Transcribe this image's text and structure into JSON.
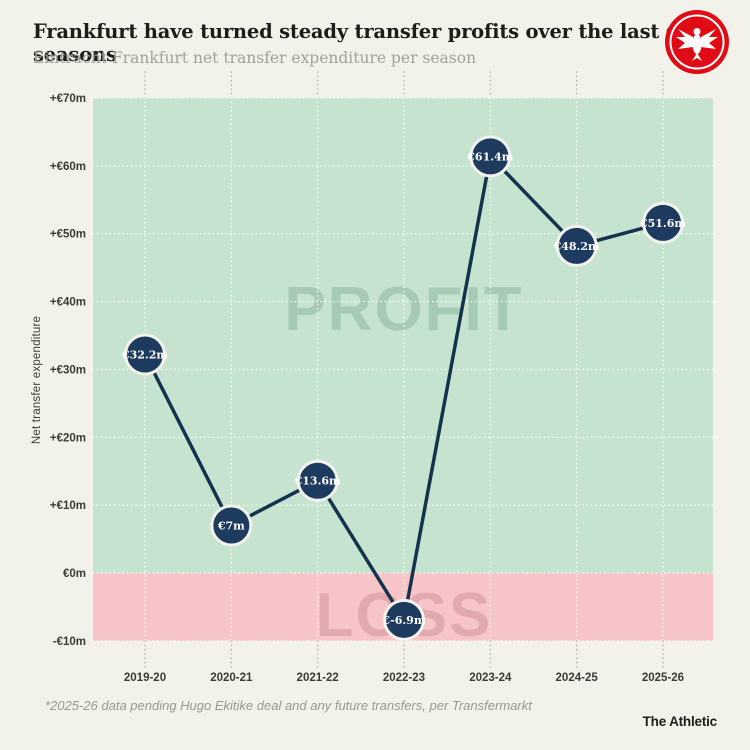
{
  "header": {
    "title": "Frankfurt have turned steady transfer profits over the last seven seasons",
    "subtitle": "Eintracht Frankfurt net transfer expenditure per season"
  },
  "chart_data": {
    "type": "line",
    "title": "Frankfurt have turned steady transfer profits over the last seven seasons",
    "subtitle": "Eintracht Frankfurt net transfer expenditure per season",
    "categories": [
      "2019-20",
      "2020-21",
      "2021-22",
      "2022-23",
      "2023-24",
      "2024-25",
      "2025-26"
    ],
    "series": [
      {
        "name": "Net transfer expenditure",
        "values": [
          32.2,
          7,
          13.6,
          -6.9,
          61.4,
          48.2,
          51.6
        ]
      }
    ],
    "point_labels": [
      "€32.2m",
      "€7m",
      "€13.6m",
      "€-6.9m",
      "€61.4m",
      "€48.2m",
      "€51.6m"
    ],
    "xlabel": "",
    "ylabel": "Net transfer expenditure",
    "ylim": [
      -10,
      70
    ],
    "yticks": [
      {
        "value": 70,
        "label": "+€70m"
      },
      {
        "value": 60,
        "label": "+€60m"
      },
      {
        "value": 50,
        "label": "+€50m"
      },
      {
        "value": 40,
        "label": "+€40m"
      },
      {
        "value": 30,
        "label": "+€30m"
      },
      {
        "value": 20,
        "label": "+€20m"
      },
      {
        "value": 10,
        "label": "+€10m"
      },
      {
        "value": 0,
        "label": "€0m"
      },
      {
        "value": -10,
        "label": "-€10m"
      }
    ],
    "zones": [
      {
        "label": "PROFIT",
        "from": 0,
        "to": 70,
        "fill": "#c6e3d0",
        "label_color": "#a7cab4"
      },
      {
        "label": "LOSS",
        "from": -10,
        "to": 0,
        "fill": "#f7c5c7",
        "label_color": "#e1aaaf"
      }
    ],
    "grid": "dotted",
    "legend": "none",
    "line_color": "#16334e",
    "point_color": "#1d3a5f",
    "point_border_color": "#f3f2ec",
    "point_text_color": "#ffffff"
  },
  "footer": {
    "note": "*2025-26 data pending Hugo Ekitike deal and any future transfers, per Transfermarkt",
    "brand": "The Athletic"
  },
  "colors": {
    "background": "#f2f1ea",
    "title": "#1d1d1b",
    "subtitle": "#a3a199",
    "axis_text": "#3b3b38",
    "grid_outside": "#b5b4ad",
    "grid_inside": "rgba(255,255,255,0.85)",
    "logo_red": "#e00b14"
  }
}
